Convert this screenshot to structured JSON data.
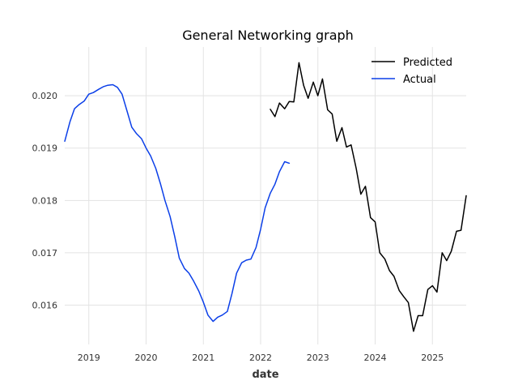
{
  "chart_data": {
    "type": "line",
    "title": "General Networking graph",
    "xlabel": "date",
    "ylabel": "",
    "xlim": [
      2018.58,
      2025.59
    ],
    "ylim": [
      0.01525,
      0.02093
    ],
    "xticks": [
      {
        "value": 2019,
        "label": "2019"
      },
      {
        "value": 2020,
        "label": "2020"
      },
      {
        "value": 2021,
        "label": "2021"
      },
      {
        "value": 2022,
        "label": "2022"
      },
      {
        "value": 2023,
        "label": "2023"
      },
      {
        "value": 2024,
        "label": "2024"
      },
      {
        "value": 2025,
        "label": "2025"
      }
    ],
    "yticks": [
      {
        "value": 0.016,
        "label": "0.016"
      },
      {
        "value": 0.017,
        "label": "0.017"
      },
      {
        "value": 0.018,
        "label": "0.018"
      },
      {
        "value": 0.019,
        "label": "0.019"
      },
      {
        "value": 0.02,
        "label": "0.020"
      }
    ],
    "grid": true,
    "legend_position": "top-right",
    "series": [
      {
        "name": "Predicted",
        "color": "#000000",
        "x": [
          2022.17,
          2022.25,
          2022.33,
          2022.42,
          2022.5,
          2022.58,
          2022.67,
          2022.75,
          2022.83,
          2022.92,
          2023.0,
          2023.08,
          2023.17,
          2023.25,
          2023.33,
          2023.42,
          2023.5,
          2023.58,
          2023.67,
          2023.75,
          2023.83,
          2023.92,
          2024.0,
          2024.08,
          2024.17,
          2024.25,
          2024.33,
          2024.42,
          2024.5,
          2024.58,
          2024.67,
          2024.75,
          2024.83,
          2024.92,
          2025.0,
          2025.08,
          2025.17,
          2025.25,
          2025.33,
          2025.42,
          2025.5,
          2025.59
        ],
        "y": [
          0.01974,
          0.0196,
          0.01986,
          0.01975,
          0.01989,
          0.01988,
          0.02063,
          0.0202,
          0.01995,
          0.02026,
          0.02,
          0.02032,
          0.01973,
          0.01965,
          0.01913,
          0.01939,
          0.01902,
          0.01906,
          0.01861,
          0.01812,
          0.01827,
          0.01767,
          0.01759,
          0.017,
          0.01688,
          0.01666,
          0.01655,
          0.01628,
          0.01616,
          0.01605,
          0.0155,
          0.0158,
          0.0158,
          0.0163,
          0.01637,
          0.01625,
          0.017,
          0.01685,
          0.01703,
          0.01741,
          0.01743,
          0.01809
        ]
      },
      {
        "name": "Actual",
        "color": "#0b3fe8",
        "x": [
          2018.58,
          2018.67,
          2018.75,
          2018.83,
          2018.92,
          2019.0,
          2019.08,
          2019.17,
          2019.25,
          2019.33,
          2019.42,
          2019.5,
          2019.58,
          2019.67,
          2019.75,
          2019.83,
          2019.92,
          2020.0,
          2020.08,
          2020.17,
          2020.25,
          2020.33,
          2020.42,
          2020.5,
          2020.58,
          2020.67,
          2020.75,
          2020.83,
          2020.92,
          2021.0,
          2021.08,
          2021.17,
          2021.25,
          2021.33,
          2021.42,
          2021.5,
          2021.58,
          2021.67,
          2021.75,
          2021.83,
          2021.92,
          2022.0,
          2022.08,
          2022.17,
          2022.25,
          2022.33,
          2022.42,
          2022.5
        ],
        "y": [
          0.01913,
          0.0195,
          0.01975,
          0.01983,
          0.0199,
          0.02003,
          0.02006,
          0.02012,
          0.02017,
          0.0202,
          0.02021,
          0.02016,
          0.02003,
          0.0197,
          0.0194,
          0.01928,
          0.01918,
          0.019,
          0.01885,
          0.01861,
          0.01832,
          0.018,
          0.01769,
          0.01731,
          0.0169,
          0.0167,
          0.01661,
          0.01646,
          0.01627,
          0.01606,
          0.01581,
          0.01569,
          0.01577,
          0.01581,
          0.01588,
          0.01622,
          0.01661,
          0.01681,
          0.01686,
          0.01688,
          0.0171,
          0.01745,
          0.01786,
          0.01814,
          0.01831,
          0.01855,
          0.01874,
          0.01871
        ]
      }
    ]
  }
}
